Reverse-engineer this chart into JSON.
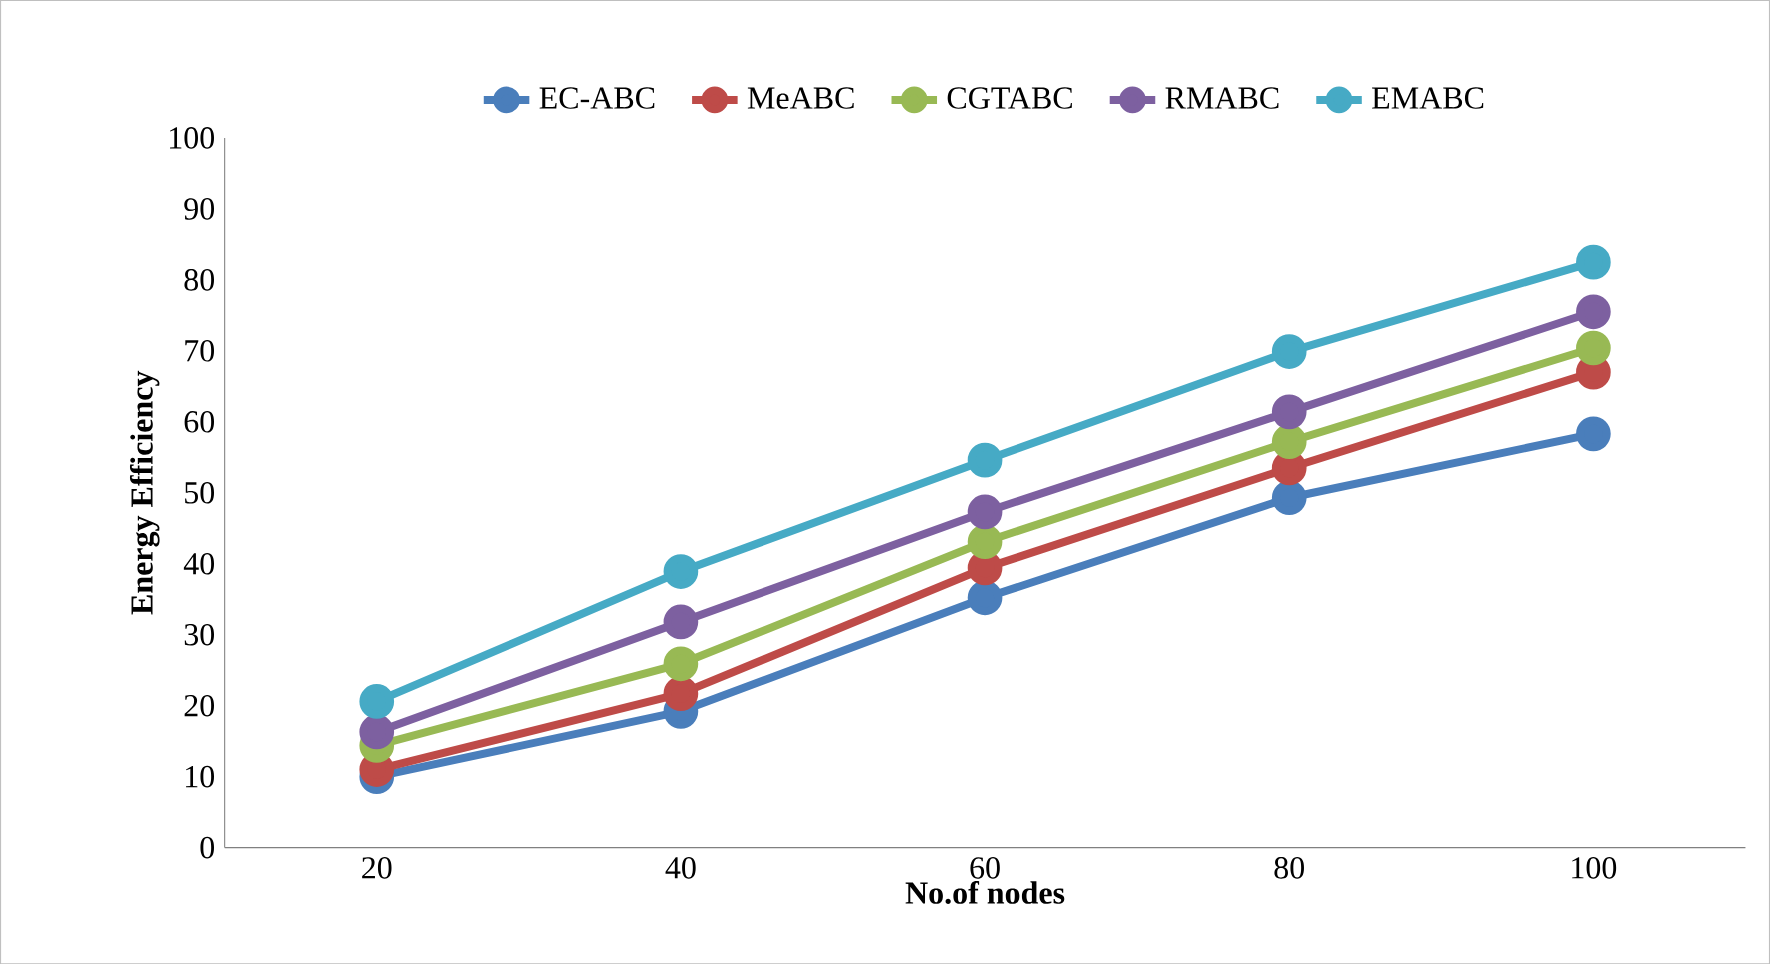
{
  "chart_data": {
    "type": "line",
    "xlabel": "No.of nodes",
    "ylabel": "Energy Efficiency",
    "categories": [
      "20",
      "40",
      "60",
      "80",
      "100"
    ],
    "series": [
      {
        "name": "EC-ABC",
        "color": "#4a7ebb",
        "values": [
          10,
          19.2,
          35.2,
          49.3,
          58.3
        ]
      },
      {
        "name": "MeABC",
        "color": "#be4b48",
        "values": [
          11,
          21.7,
          39.4,
          53.5,
          67
        ]
      },
      {
        "name": "CGTABC",
        "color": "#98b954",
        "values": [
          14.4,
          25.9,
          43.1,
          57.2,
          70.4
        ]
      },
      {
        "name": "RMABC",
        "color": "#7d60a0",
        "values": [
          16.3,
          31.8,
          47.3,
          61.4,
          75.5
        ]
      },
      {
        "name": "EMABC",
        "color": "#46aac5",
        "values": [
          20.6,
          38.9,
          54.6,
          69.9,
          82.5
        ]
      }
    ],
    "ylim": [
      0,
      100
    ],
    "yticks": [
      0,
      10,
      20,
      30,
      40,
      50,
      60,
      70,
      80,
      90,
      100
    ],
    "grid": false,
    "legend": "top",
    "marker": "circle",
    "line_style": "solid"
  }
}
